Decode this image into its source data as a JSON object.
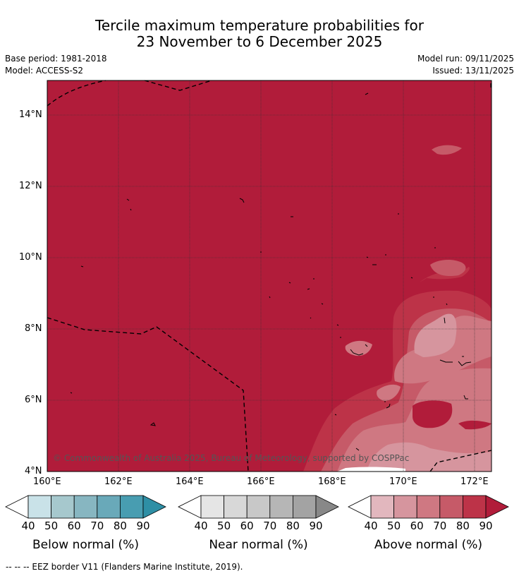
{
  "title": {
    "line1": "Tercile maximum temperature probabilities for",
    "line2": "23 November to 6 December 2025"
  },
  "meta": {
    "base_period": "Base period: 1981-2018",
    "model": "Model: ACCESS-S2",
    "model_run": "Model run: 09/11/2025",
    "issued": "Issued: 13/11/2025"
  },
  "map": {
    "lat_ticks": [
      "14°N",
      "12°N",
      "10°N",
      "8°N",
      "6°N",
      "4°N"
    ],
    "lon_ticks": [
      "160°E",
      "162°E",
      "164°E",
      "166°E",
      "168°E",
      "170°E",
      "172°E"
    ],
    "copyright": "© Commonwealth of Australia 2025, Bureau of Meteorology, supported by COSPPac"
  },
  "colorbars": [
    {
      "title": "Below normal (%)",
      "labels": [
        "40",
        "50",
        "60",
        "70",
        "80",
        "90"
      ],
      "colors": [
        "#ffffff",
        "#c9e2e8",
        "#a6c8cd",
        "#87b6c1",
        "#69a9b9",
        "#489db1",
        "#2e8fa5"
      ]
    },
    {
      "title": "Near normal (%)",
      "labels": [
        "40",
        "50",
        "60",
        "70",
        "80",
        "90"
      ],
      "colors": [
        "#ffffff",
        "#e5e5e5",
        "#d8d8d8",
        "#c8c8c8",
        "#b6b6b6",
        "#a3a3a3",
        "#888888"
      ]
    },
    {
      "title": "Above normal (%)",
      "labels": [
        "40",
        "50",
        "60",
        "70",
        "80",
        "90"
      ],
      "colors": [
        "#ffffff",
        "#e2b7be",
        "#d6959e",
        "#cf7882",
        "#c65a68",
        "#bd3348",
        "#b11c3a"
      ]
    }
  ],
  "footnote": "--  --  -- EEZ border V11 (Flanders Marine Institute, 2019)."
}
